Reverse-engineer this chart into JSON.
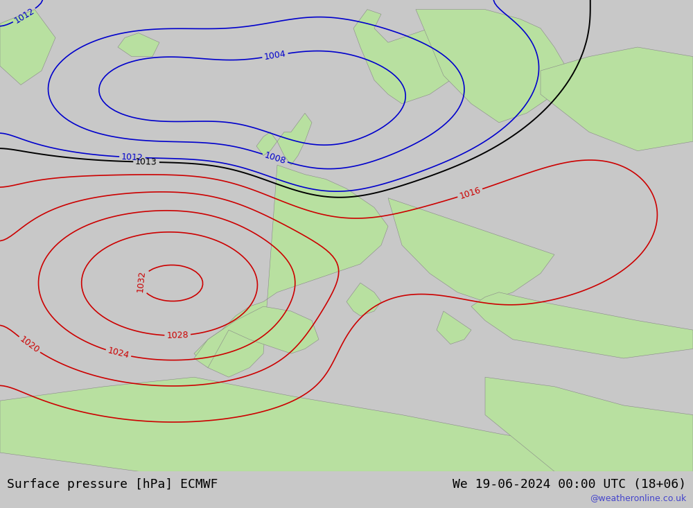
{
  "title_left": "Surface pressure [hPa] ECMWF",
  "title_right": "We 19-06-2024 00:00 UTC (18+06)",
  "watermark": "@weatheronline.co.uk",
  "bg_color": "#e8e8e8",
  "land_color": "#b8e0a0",
  "fig_width": 10.0,
  "fig_height": 7.33,
  "bottom_bar_color": "#d0d0d0",
  "title_fontsize": 13,
  "watermark_color": "#4444cc",
  "contour_interval": 4,
  "pressure_min": 996,
  "pressure_max": 1036,
  "label_fontsize": 9
}
